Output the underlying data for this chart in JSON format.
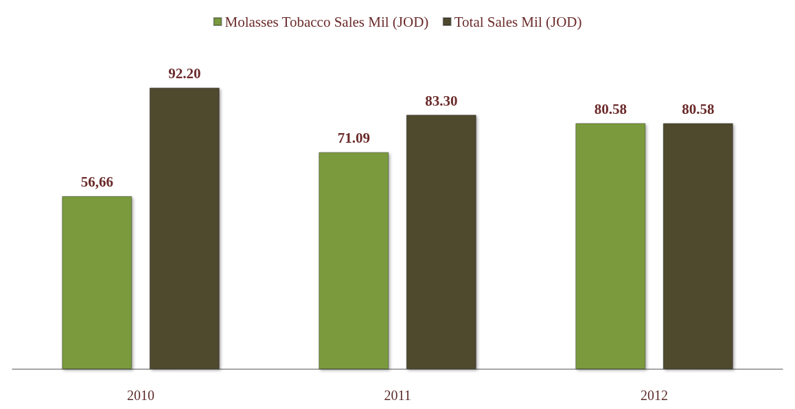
{
  "chart_data": {
    "type": "bar",
    "categories": [
      "2010",
      "2011",
      "2012"
    ],
    "series": [
      {
        "name": "Molasses Tobacco Sales Mil (JOD)",
        "color": "#7a9a3e",
        "values": [
          56.66,
          71.09,
          80.58
        ],
        "value_labels": [
          "56,66",
          "71.09",
          "80.58"
        ]
      },
      {
        "name": "Total Sales Mil (JOD)",
        "color": "#4f4a2e",
        "values": [
          92.2,
          83.3,
          80.58
        ],
        "value_labels": [
          "92.20",
          "83.30",
          "80.58"
        ]
      }
    ],
    "legend": "top"
  }
}
